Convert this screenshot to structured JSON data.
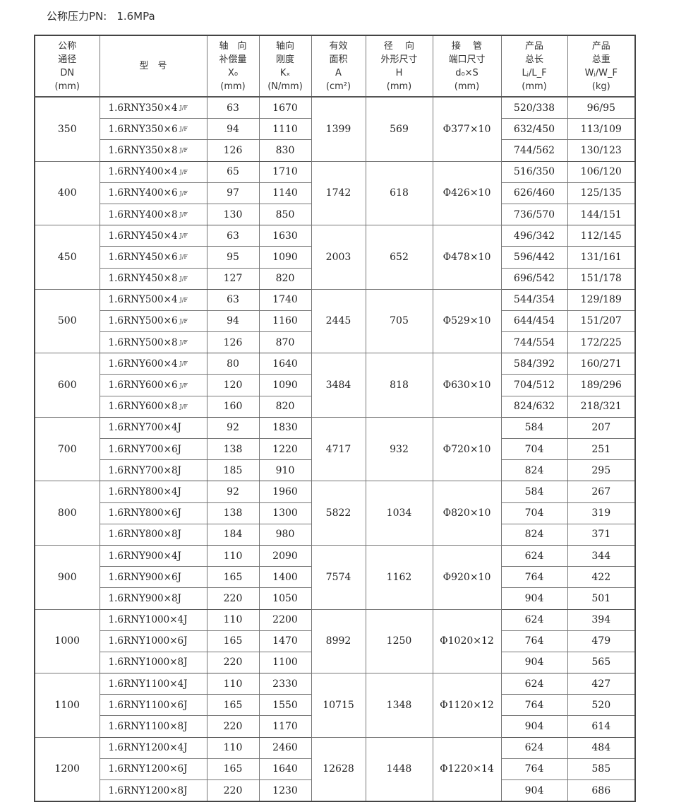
{
  "pressure": {
    "label": "公称压力PN:",
    "value": "1.6MPa"
  },
  "headers": [
    "公称\n通径\nDN\n(mm)",
    "型　号",
    "轴　向\n补偿量\nX₀\n(mm)",
    "轴向\n刚度\nKₓ\n(N/mm)",
    "有效\n面积\nA\n(cm²)",
    "径　 向\n外形尺寸\nH\n(mm)",
    "接　 管\n端口尺寸\nd₀×S\n(mm)",
    "产品\n总长\nLⱼ/L_F\n(mm)",
    "产品\n总重\nWⱼ/W_F\n(kg)"
  ],
  "groups": [
    {
      "dn": "350",
      "a": "1399",
      "h": "569",
      "pipe": "Φ377×10",
      "rows": [
        {
          "model": "1.6RNY350×4",
          "suffix": "J/F",
          "x0": "63",
          "kx": "1670",
          "len": "520/338",
          "wt": "96/95"
        },
        {
          "model": "1.6RNY350×6",
          "suffix": "J/F",
          "x0": "94",
          "kx": "1110",
          "len": "632/450",
          "wt": "113/109"
        },
        {
          "model": "1.6RNY350×8",
          "suffix": "J/F",
          "x0": "126",
          "kx": "830",
          "len": "744/562",
          "wt": "130/123"
        }
      ]
    },
    {
      "dn": "400",
      "a": "1742",
      "h": "618",
      "pipe": "Φ426×10",
      "rows": [
        {
          "model": "1.6RNY400×4",
          "suffix": "J/F",
          "x0": "65",
          "kx": "1710",
          "len": "516/350",
          "wt": "106/120"
        },
        {
          "model": "1.6RNY400×6",
          "suffix": "J/F",
          "x0": "97",
          "kx": "1140",
          "len": "626/460",
          "wt": "125/135"
        },
        {
          "model": "1.6RNY400×8",
          "suffix": "J/F",
          "x0": "130",
          "kx": "850",
          "len": "736/570",
          "wt": "144/151"
        }
      ]
    },
    {
      "dn": "450",
      "a": "2003",
      "h": "652",
      "pipe": "Φ478×10",
      "rows": [
        {
          "model": "1.6RNY450×4",
          "suffix": "J/F",
          "x0": "63",
          "kx": "1630",
          "len": "496/342",
          "wt": "112/145"
        },
        {
          "model": "1.6RNY450×6",
          "suffix": "J/F",
          "x0": "95",
          "kx": "1090",
          "len": "596/442",
          "wt": "131/161"
        },
        {
          "model": "1.6RNY450×8",
          "suffix": "J/F",
          "x0": "127",
          "kx": "820",
          "len": "696/542",
          "wt": "151/178"
        }
      ]
    },
    {
      "dn": "500",
      "a": "2445",
      "h": "705",
      "pipe": "Φ529×10",
      "rows": [
        {
          "model": "1.6RNY500×4",
          "suffix": "J/F",
          "x0": "63",
          "kx": "1740",
          "len": "544/354",
          "wt": "129/189"
        },
        {
          "model": "1.6RNY500×6",
          "suffix": "J/F",
          "x0": "94",
          "kx": "1160",
          "len": "644/454",
          "wt": "151/207"
        },
        {
          "model": "1.6RNY500×8",
          "suffix": "J/F",
          "x0": "126",
          "kx": "870",
          "len": "744/554",
          "wt": "172/225"
        }
      ]
    },
    {
      "dn": "600",
      "a": "3484",
      "h": "818",
      "pipe": "Φ630×10",
      "rows": [
        {
          "model": "1.6RNY600×4",
          "suffix": "J/F",
          "x0": "80",
          "kx": "1640",
          "len": "584/392",
          "wt": "160/271"
        },
        {
          "model": "1.6RNY600×6",
          "suffix": "J/F",
          "x0": "120",
          "kx": "1090",
          "len": "704/512",
          "wt": "189/296"
        },
        {
          "model": "1.6RNY600×8",
          "suffix": "J/F",
          "x0": "160",
          "kx": "820",
          "len": "824/632",
          "wt": "218/321"
        }
      ]
    },
    {
      "dn": "700",
      "a": "4717",
      "h": "932",
      "pipe": "Φ720×10",
      "rows": [
        {
          "model": "1.6RNY700×4J",
          "x0": "92",
          "kx": "1830",
          "len": "584",
          "wt": "207"
        },
        {
          "model": "1.6RNY700×6J",
          "x0": "138",
          "kx": "1220",
          "len": "704",
          "wt": "251"
        },
        {
          "model": "1.6RNY700×8J",
          "x0": "185",
          "kx": "910",
          "len": "824",
          "wt": "295"
        }
      ]
    },
    {
      "dn": "800",
      "a": "5822",
      "h": "1034",
      "pipe": "Φ820×10",
      "rows": [
        {
          "model": "1.6RNY800×4J",
          "x0": "92",
          "kx": "1960",
          "len": "584",
          "wt": "267"
        },
        {
          "model": "1.6RNY800×6J",
          "x0": "138",
          "kx": "1300",
          "len": "704",
          "wt": "319"
        },
        {
          "model": "1.6RNY800×8J",
          "x0": "184",
          "kx": "980",
          "len": "824",
          "wt": "371"
        }
      ]
    },
    {
      "dn": "900",
      "a": "7574",
      "h": "1162",
      "pipe": "Φ920×10",
      "rows": [
        {
          "model": "1.6RNY900×4J",
          "x0": "110",
          "kx": "2090",
          "len": "624",
          "wt": "344"
        },
        {
          "model": "1.6RNY900×6J",
          "x0": "165",
          "kx": "1400",
          "len": "764",
          "wt": "422"
        },
        {
          "model": "1.6RNY900×8J",
          "x0": "220",
          "kx": "1050",
          "len": "904",
          "wt": "501"
        }
      ]
    },
    {
      "dn": "1000",
      "a": "8992",
      "h": "1250",
      "pipe": "Φ1020×12",
      "rows": [
        {
          "model": "1.6RNY1000×4J",
          "x0": "110",
          "kx": "2200",
          "len": "624",
          "wt": "394"
        },
        {
          "model": "1.6RNY1000×6J",
          "x0": "165",
          "kx": "1470",
          "len": "764",
          "wt": "479"
        },
        {
          "model": "1.6RNY1000×8J",
          "x0": "220",
          "kx": "1100",
          "len": "904",
          "wt": "565"
        }
      ]
    },
    {
      "dn": "1100",
      "a": "10715",
      "h": "1348",
      "pipe": "Φ1120×12",
      "rows": [
        {
          "model": "1.6RNY1100×4J",
          "x0": "110",
          "kx": "2330",
          "len": "624",
          "wt": "427"
        },
        {
          "model": "1.6RNY1100×6J",
          "x0": "165",
          "kx": "1550",
          "len": "764",
          "wt": "520"
        },
        {
          "model": "1.6RNY1100×8J",
          "x0": "220",
          "kx": "1170",
          "len": "904",
          "wt": "614"
        }
      ]
    },
    {
      "dn": "1200",
      "a": "12628",
      "h": "1448",
      "pipe": "Φ1220×14",
      "rows": [
        {
          "model": "1.6RNY1200×4J",
          "x0": "110",
          "kx": "2460",
          "len": "624",
          "wt": "484"
        },
        {
          "model": "1.6RNY1200×6J",
          "x0": "165",
          "kx": "1640",
          "len": "764",
          "wt": "585"
        },
        {
          "model": "1.6RNY1200×8J",
          "x0": "220",
          "kx": "1230",
          "len": "904",
          "wt": "686"
        }
      ]
    }
  ]
}
